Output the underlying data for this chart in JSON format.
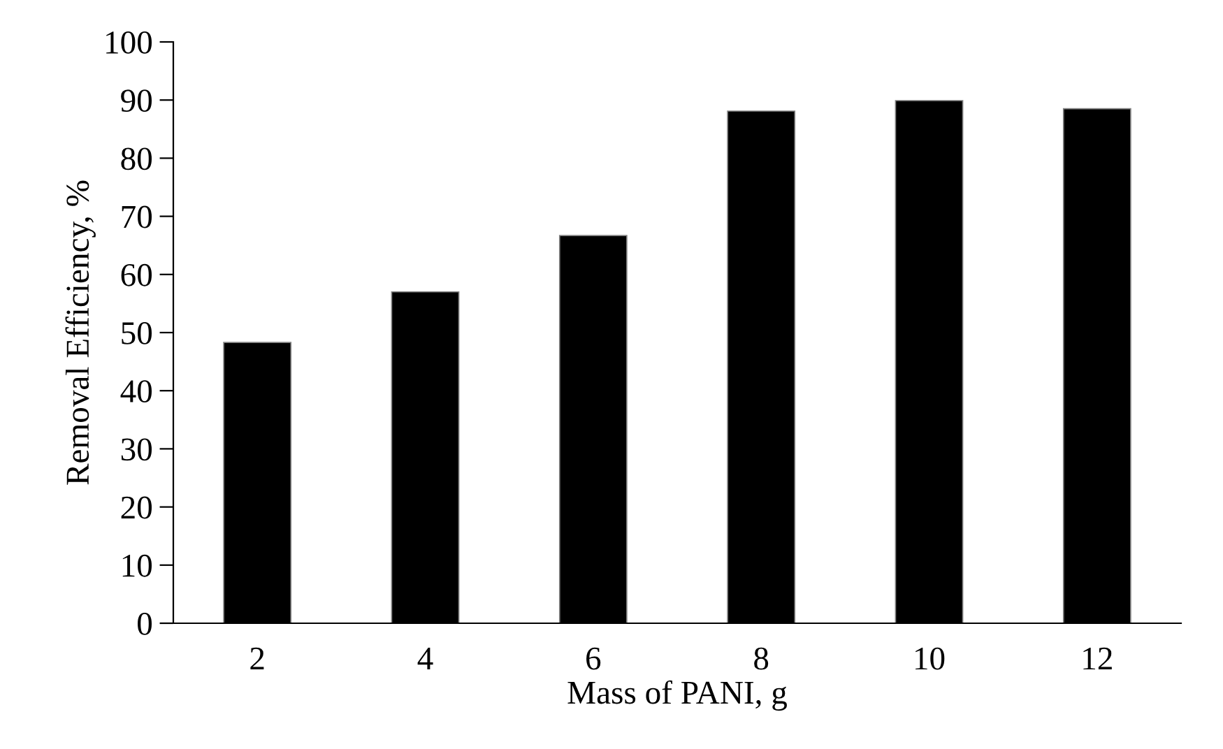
{
  "chart_data": {
    "type": "bar",
    "xlabel": "Mass of PANI, g",
    "ylabel": "Removal Efficiency, %",
    "categories": [
      "2",
      "4",
      "6",
      "8",
      "10",
      "12"
    ],
    "values": [
      48.3,
      57.0,
      66.7,
      88.1,
      89.9,
      88.5
    ],
    "color": "#000000",
    "ylim": [
      0,
      100
    ],
    "yticks": [
      0,
      10,
      20,
      30,
      40,
      50,
      60,
      70,
      80,
      90,
      100
    ],
    "grid": false,
    "legend": false
  }
}
